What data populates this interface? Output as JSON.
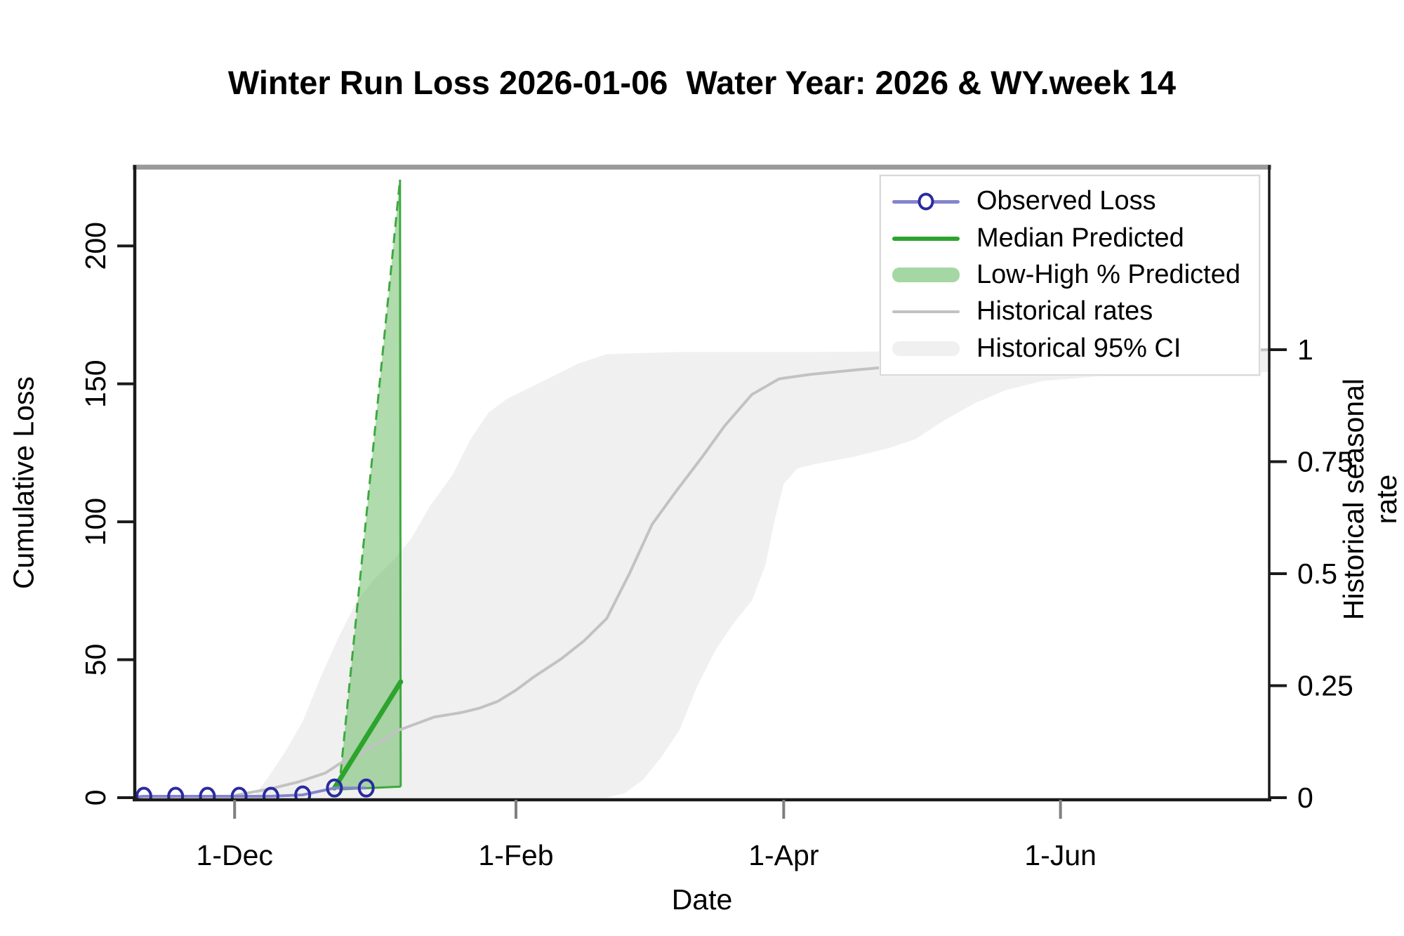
{
  "title": "Winter Run Loss 2026-01-06  Water Year: 2026 & WY.week 14",
  "axes": {
    "x": {
      "label": "Date",
      "ticks": [
        {
          "label": "1-Dec",
          "day": 22
        },
        {
          "label": "1-Feb",
          "day": 84
        },
        {
          "label": "1-Apr",
          "day": 143
        },
        {
          "label": "1-Jun",
          "day": 204
        }
      ]
    },
    "y_left": {
      "label": "Cumulative Loss",
      "ticks": [
        0,
        50,
        100,
        150,
        200
      ],
      "range": [
        0,
        228
      ]
    },
    "y_right": {
      "label": "Historical seasonal rate",
      "ticks": [
        0,
        0.25,
        0.5,
        0.75,
        1
      ],
      "range": [
        0,
        1.41
      ]
    }
  },
  "colors": {
    "observed_line": "#8484CE",
    "observed_marker": "#2A2AA0",
    "median_line": "#2DA42D",
    "predicted_band_fill": "#4DAF4A",
    "predicted_band_edge": "#3FA83F",
    "historical_line": "#C2C2C2",
    "historical_ci_fill": "#F0F0F0",
    "axis_line": "#1A1A1A",
    "top_border": "#999999",
    "x_tick": "#7F7F7F"
  },
  "legend": [
    {
      "label": "Observed Loss",
      "key": "line-marker",
      "color": "#8484CE",
      "marker_color": "#2A2AA0",
      "thickness": 5
    },
    {
      "label": "Median Predicted",
      "key": "line",
      "color": "#2DA42D",
      "thickness": 6
    },
    {
      "label": "Low-High % Predicted",
      "key": "band",
      "color": "#A5D7A4",
      "thickness": 21
    },
    {
      "label": "Historical rates",
      "key": "line",
      "color": "#C2C2C2",
      "thickness": 4
    },
    {
      "label": "Historical 95% CI",
      "key": "band",
      "color": "#F0F0F0",
      "thickness": 21
    }
  ],
  "chart_data": {
    "type": "line",
    "title": "Winter Run Loss 2026-01-06  Water Year: 2026 & WY.week 14",
    "xlabel": "Date",
    "ylabel_left": "Cumulative Loss",
    "ylabel_right": "Historical seasonal rate",
    "x_tick_labels": [
      "1-Dec",
      "1-Feb",
      "1-Apr",
      "1-Jun"
    ],
    "x_domain_days": [
      0,
      250
    ],
    "day0_position": "about three weeks before 1-Dec",
    "ylim_left": [
      0,
      228
    ],
    "ylim_right": [
      0,
      1.41
    ],
    "grid": false,
    "legend_position": "top-right",
    "series": [
      {
        "name": "Observed Loss",
        "axis": "left",
        "style": "line-with-open-circles",
        "dates": [
          "11-Nov",
          "18-Nov",
          "25-Nov",
          "2-Dec",
          "9-Dec",
          "16-Dec",
          "23-Dec",
          "30-Dec"
        ],
        "days": [
          2,
          9,
          16,
          23,
          30,
          37,
          44,
          51
        ],
        "values": [
          0.5,
          0.5,
          0.5,
          0.5,
          0.5,
          1,
          3.5,
          3.5
        ]
      },
      {
        "name": "Median Predicted",
        "axis": "left",
        "style": "line",
        "dates": [
          "23-Dec",
          "6-Jan"
        ],
        "days": [
          44,
          58.6
        ],
        "values": [
          3.5,
          42
        ]
      },
      {
        "name": "Low-High % Predicted",
        "axis": "left",
        "style": "band",
        "low_line": {
          "days": [
            45,
            58.6
          ],
          "values": [
            3,
            4
          ]
        },
        "high_line": {
          "days": [
            45,
            58.45
          ],
          "values": [
            3,
            224
          ]
        },
        "note": "narrow fan from ~24-Dec to forecast date 6-Jan; interval at 6-Jan spans ~4 to ~224"
      },
      {
        "name": "Historical rates",
        "axis": "right",
        "style": "line",
        "days": [
          22,
          30,
          36,
          42,
          45,
          50,
          55,
          58,
          62,
          66,
          72,
          76,
          80,
          84,
          88,
          94,
          99,
          104,
          109,
          114,
          119,
          125,
          130,
          136,
          142,
          149,
          159,
          170,
          183,
          204,
          230,
          250
        ],
        "values": [
          0.005,
          0.02,
          0.035,
          0.055,
          0.075,
          0.1,
          0.13,
          0.15,
          0.165,
          0.18,
          0.19,
          0.2,
          0.215,
          0.24,
          0.27,
          0.31,
          0.35,
          0.4,
          0.5,
          0.61,
          0.68,
          0.76,
          0.83,
          0.9,
          0.935,
          0.945,
          0.955,
          0.965,
          0.975,
          0.985,
          0.995,
          1.0
        ]
      },
      {
        "name": "Historical 95% CI",
        "axis": "right",
        "style": "band",
        "upper": {
          "days": [
            26,
            29,
            33,
            37,
            41,
            45,
            49,
            53,
            57,
            61,
            65,
            70,
            74,
            78,
            82,
            86,
            92,
            98,
            104,
            120,
            150,
            180,
            210,
            250
          ],
          "values": [
            0.0,
            0.04,
            0.1,
            0.17,
            0.27,
            0.36,
            0.44,
            0.49,
            0.53,
            0.58,
            0.65,
            0.72,
            0.8,
            0.86,
            0.89,
            0.91,
            0.94,
            0.97,
            0.99,
            0.995,
            0.995,
            0.997,
            1.0,
            1.0
          ]
        },
        "lower": {
          "days": [
            26,
            104,
            108,
            112,
            116,
            120,
            124,
            128,
            132,
            136,
            139,
            141,
            143,
            146,
            150,
            158,
            166,
            172,
            178,
            185,
            192,
            200,
            212,
            230,
            250
          ],
          "values": [
            0.0,
            0.0,
            0.01,
            0.04,
            0.09,
            0.15,
            0.25,
            0.33,
            0.39,
            0.44,
            0.52,
            0.62,
            0.7,
            0.735,
            0.745,
            0.76,
            0.78,
            0.8,
            0.84,
            0.88,
            0.91,
            0.93,
            0.94,
            0.945,
            0.95
          ]
        }
      }
    ]
  }
}
